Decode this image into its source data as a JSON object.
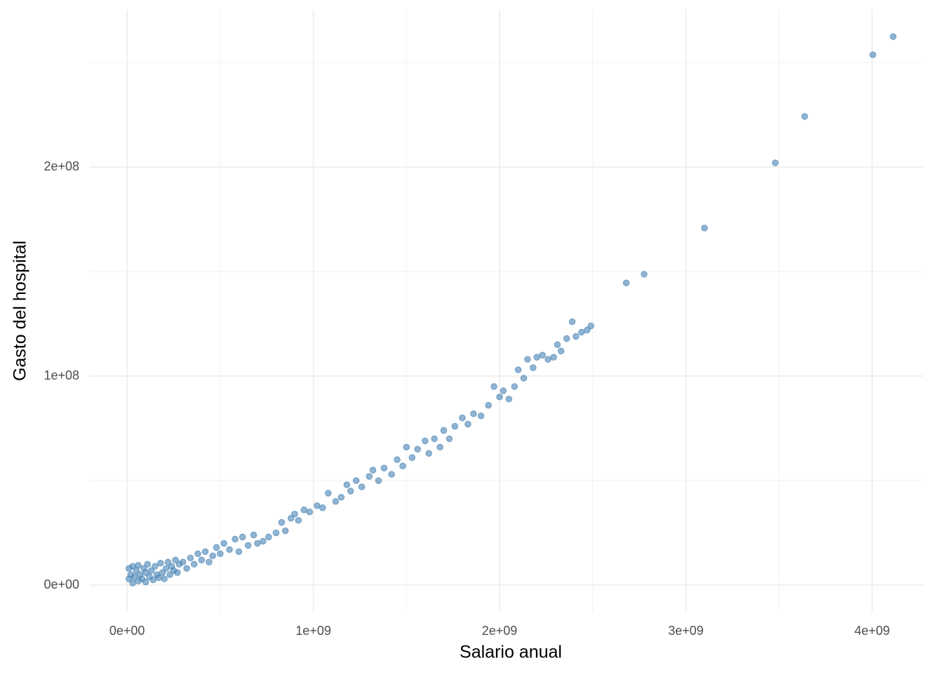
{
  "chart_data": {
    "type": "scatter",
    "x_label": "Salario anual",
    "y_label": "Gasto del hospital",
    "color": "#4682b4",
    "grid": true,
    "xlim": [
      -200000000.0,
      4275000000.0
    ],
    "ylim": [
      -12750000.0,
      275200000.0
    ],
    "xticks": [
      {
        "value": 0,
        "label": "0e+00"
      },
      {
        "value": 1000000000.0,
        "label": "1e+09"
      },
      {
        "value": 2000000000.0,
        "label": "2e+09"
      },
      {
        "value": 3000000000.0,
        "label": "3e+09"
      },
      {
        "value": 4000000000.0,
        "label": "4e+09"
      }
    ],
    "yticks": [
      {
        "value": 0,
        "label": "0e+00"
      },
      {
        "value": 100000000.0,
        "label": "1e+08"
      },
      {
        "value": 200000000.0,
        "label": "2e+08"
      }
    ],
    "x_minor_grid": [
      500000000.0,
      1500000000.0,
      2500000000.0,
      3500000000.0
    ],
    "y_minor_grid": [
      50000000.0,
      150000000.0,
      250000000.0
    ],
    "x": [
      10000000.0,
      10000000.0,
      20000000.0,
      30000000.0,
      30000000.0,
      40000000.0,
      50000000.0,
      60000000.0,
      60000000.0,
      70000000.0,
      80000000.0,
      90000000.0,
      100000000.0,
      100000000.0,
      110000000.0,
      120000000.0,
      130000000.0,
      140000000.0,
      150000000.0,
      160000000.0,
      170000000.0,
      180000000.0,
      190000000.0,
      200000000.0,
      210000000.0,
      220000000.0,
      230000000.0,
      240000000.0,
      250000000.0,
      260000000.0,
      270000000.0,
      280000000.0,
      300000000.0,
      320000000.0,
      340000000.0,
      360000000.0,
      380000000.0,
      400000000.0,
      420000000.0,
      440000000.0,
      460000000.0,
      480000000.0,
      500000000.0,
      520000000.0,
      550000000.0,
      580000000.0,
      600000000.0,
      620000000.0,
      650000000.0,
      680000000.0,
      700000000.0,
      730000000.0,
      760000000.0,
      800000000.0,
      830000000.0,
      850000000.0,
      880000000.0,
      900000000.0,
      920000000.0,
      950000000.0,
      980000000.0,
      1020000000.0,
      1050000000.0,
      1080000000.0,
      1120000000.0,
      1150000000.0,
      1180000000.0,
      1200000000.0,
      1230000000.0,
      1260000000.0,
      1300000000.0,
      1320000000.0,
      1350000000.0,
      1380000000.0,
      1420000000.0,
      1450000000.0,
      1480000000.0,
      1500000000.0,
      1530000000.0,
      1560000000.0,
      1600000000.0,
      1620000000.0,
      1650000000.0,
      1680000000.0,
      1700000000.0,
      1730000000.0,
      1760000000.0,
      1800000000.0,
      1830000000.0,
      1860000000.0,
      1900000000.0,
      1940000000.0,
      1970000000.0,
      2000000000.0,
      2020000000.0,
      2050000000.0,
      2080000000.0,
      2100000000.0,
      2130000000.0,
      2150000000.0,
      2180000000.0,
      2200000000.0,
      2230000000.0,
      2260000000.0,
      2290000000.0,
      2310000000.0,
      2330000000.0,
      2360000000.0,
      2390000000.0,
      2410000000.0,
      2440000000.0,
      2470000000.0,
      2490000000.0,
      2680000000.0,
      2776000000.0,
      3100000000.0,
      3480000000.0,
      3638000000.0,
      4004000000.0,
      4113000000.0
    ],
    "values": [
      3000000.0,
      8000000.0,
      5000000.0,
      1000000.0,
      9000000.0,
      4000000.0,
      7000000.0,
      2000000.0,
      9500000.0,
      5000000.0,
      3000000.0,
      8000000.0,
      6000000.0,
      1500000.0,
      10000000.0,
      4000000.0,
      7000000.0,
      2500000.0,
      9000000.0,
      5000000.0,
      3500000.0,
      10500000.0,
      6000000.0,
      3000000.0,
      8000000.0,
      11000000.0,
      5000000.0,
      9000000.0,
      7000000.0,
      12000000.0,
      6000000.0,
      10000000.0,
      11000000.0,
      8000000.0,
      13000000.0,
      10000000.0,
      15000000.0,
      12000000.0,
      16000000.0,
      11000000.0,
      14000000.0,
      18000000.0,
      15000000.0,
      20000000.0,
      17000000.0,
      22000000.0,
      16000000.0,
      23000000.0,
      19000000.0,
      24000000.0,
      20000000.0,
      21000000.0,
      23000000.0,
      25000000.0,
      30000000.0,
      26000000.0,
      32000000.0,
      34000000.0,
      31000000.0,
      36000000.0,
      35000000.0,
      38000000.0,
      37000000.0,
      44000000.0,
      40000000.0,
      42000000.0,
      48000000.0,
      45000000.0,
      50000000.0,
      47000000.0,
      52000000.0,
      55000000.0,
      50000000.0,
      56000000.0,
      53000000.0,
      60000000.0,
      57000000.0,
      66000000.0,
      61000000.0,
      65000000.0,
      69000000.0,
      63000000.0,
      70000000.0,
      66000000.0,
      74000000.0,
      70000000.0,
      76000000.0,
      80000000.0,
      77000000.0,
      82000000.0,
      81000000.0,
      86000000.0,
      95000000.0,
      90000000.0,
      93000000.0,
      89000000.0,
      95000000.0,
      103000000.0,
      99000000.0,
      108000000.0,
      104000000.0,
      109000000.0,
      110000000.0,
      108000000.0,
      109000000.0,
      115000000.0,
      112000000.0,
      118000000.0,
      126000000.0,
      119000000.0,
      121000000.0,
      122000000.0,
      124000000.0,
      144600000.0,
      148700000.0,
      170800000.0,
      202000000.0,
      224200000.0,
      253700000.0,
      262400000.0
    ]
  }
}
